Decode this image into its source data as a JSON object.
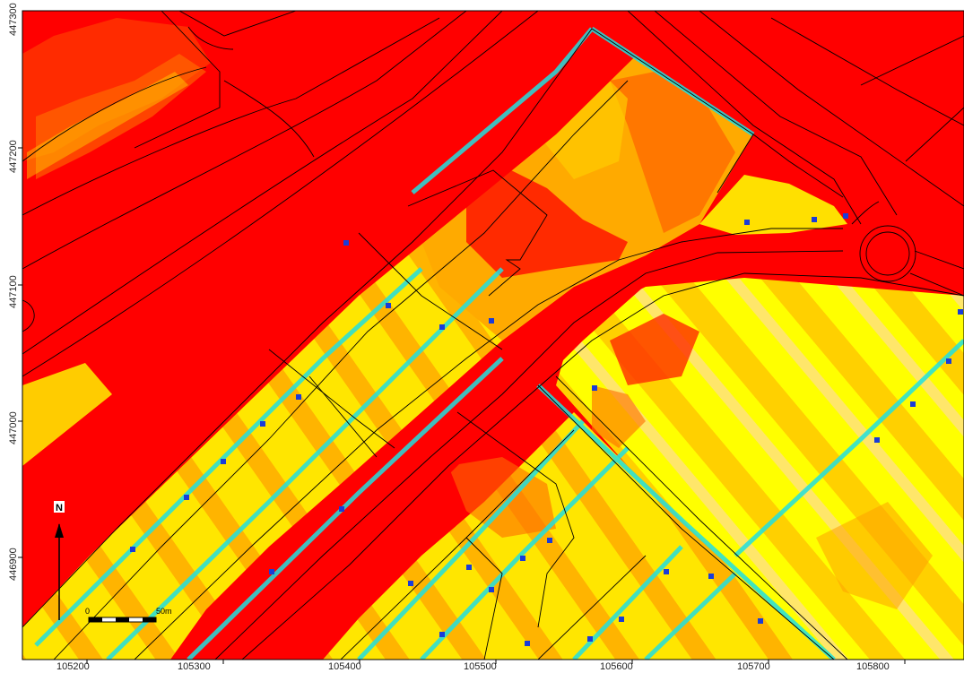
{
  "map": {
    "x_ticks": [
      "105200",
      "105300",
      "105400",
      "105500",
      "105600",
      "105700",
      "105800"
    ],
    "y_ticks": [
      "447300",
      "447200",
      "447100",
      "447000",
      "446900"
    ],
    "north_label": "N",
    "scale": {
      "start_label": "0",
      "end_label": "50m"
    },
    "colors": {
      "high": "#ff0000",
      "mid_high": "#ff7a00",
      "mid": "#ffd800",
      "low_mid": "#ffff00",
      "low": "#1ee6e6",
      "lowest": "#1a3cd8"
    }
  }
}
